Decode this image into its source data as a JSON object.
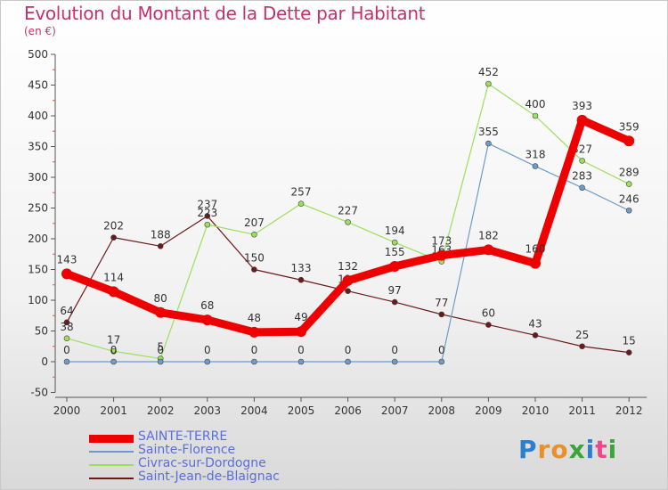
{
  "title": "Evolution du Montant de la Dette par Habitant",
  "subtitle": "(en €)",
  "logo": {
    "text": "Proxiti",
    "letters": [
      {
        "ch": "P",
        "color": "#2a7fd0"
      },
      {
        "ch": "r",
        "color": "#e8902a"
      },
      {
        "ch": "o",
        "color": "#e8902a"
      },
      {
        "ch": "x",
        "color": "#3aa63a"
      },
      {
        "ch": "i",
        "color": "#2a7fd0"
      },
      {
        "ch": "t",
        "color": "#e84a8a"
      },
      {
        "ch": "i",
        "color": "#3aa63a"
      }
    ]
  },
  "chart_data": {
    "type": "line",
    "title": "Evolution du Montant de la Dette par Habitant",
    "ylabel": "(en €)",
    "x": [
      "2000",
      "2001",
      "2002",
      "2003",
      "2004",
      "2005",
      "2006",
      "2007",
      "2008",
      "2009",
      "2010",
      "2011",
      "2012"
    ],
    "yticks": [
      -50,
      0,
      50,
      100,
      150,
      200,
      250,
      300,
      350,
      400,
      450,
      500
    ],
    "ylim": [
      -50,
      500
    ],
    "grid": false,
    "legend_position": "bottom",
    "series": [
      {
        "name": "SAINTE-TERRE",
        "color": "#ee0000",
        "width": 9,
        "values": [
          143,
          114,
          80,
          68,
          48,
          49,
          132,
          155,
          173,
          182,
          160,
          393,
          359
        ]
      },
      {
        "name": "Sainte-Florence",
        "color": "#6d9ccc",
        "width": 1.2,
        "values": [
          0,
          0,
          0,
          0,
          0,
          0,
          0,
          0,
          0,
          355,
          318,
          283,
          246
        ]
      },
      {
        "name": "Civrac-sur-Dordogne",
        "color": "#9be05a",
        "width": 1.2,
        "values": [
          38,
          17,
          5,
          223,
          207,
          257,
          227,
          194,
          163,
          452,
          400,
          327,
          289
        ]
      },
      {
        "name": "Saint-Jean-de-Blaignac",
        "color": "#6b1a1a",
        "width": 1.2,
        "values": [
          64,
          202,
          188,
          237,
          150,
          133,
          115,
          97,
          77,
          60,
          43,
          25,
          15
        ]
      }
    ]
  }
}
